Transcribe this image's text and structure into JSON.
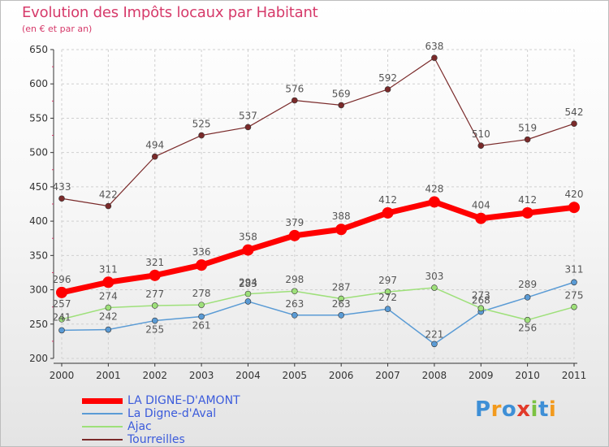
{
  "title": "Evolution des Impôts locaux par Habitant",
  "subtitle": "(en € et par an)",
  "logo": {
    "text": "Proxiti",
    "letters": [
      "P",
      "r",
      "o",
      "x",
      "i",
      "t",
      "i"
    ],
    "colors": [
      "#3e8fd6",
      "#f29a1d",
      "#3e8fd6",
      "#e23a2a",
      "#7cc242",
      "#3e8fd6",
      "#f29a1d"
    ]
  },
  "chart_data": {
    "type": "line",
    "title": "Evolution des Impôts locaux par Habitant",
    "subtitle": "(en € et par an)",
    "xlabel": "",
    "ylabel": "",
    "ylim": [
      200,
      650
    ],
    "yticks": [
      200,
      250,
      300,
      350,
      400,
      450,
      500,
      550,
      600,
      650
    ],
    "x": [
      "2000",
      "2001",
      "2002",
      "2003",
      "2004",
      "2005",
      "2006",
      "2007",
      "2008",
      "2009",
      "2010",
      "2011"
    ],
    "legend_position": "bottom-left",
    "series": [
      {
        "name": "LA DIGNE-D'AMONT",
        "color": "#ff0000",
        "width": 7,
        "marker": 7,
        "values": [
          296,
          311,
          321,
          336,
          358,
          379,
          388,
          412,
          428,
          404,
          412,
          420
        ]
      },
      {
        "name": "La Digne-d'Aval",
        "color": "#5a9bd5",
        "width": 1.5,
        "marker": 3.5,
        "values": [
          241,
          242,
          255,
          261,
          283,
          263,
          263,
          272,
          221,
          268,
          289,
          311
        ]
      },
      {
        "name": "Ajac",
        "color": "#9ee07a",
        "width": 1.5,
        "marker": 3.5,
        "values": [
          257,
          274,
          277,
          278,
          294,
          298,
          287,
          297,
          303,
          273,
          256,
          275
        ]
      },
      {
        "name": "Tourreilles",
        "color": "#7a2a2a",
        "width": 1.2,
        "marker": 3.5,
        "values": [
          433,
          422,
          494,
          525,
          537,
          576,
          569,
          592,
          638,
          510,
          519,
          542
        ]
      }
    ]
  }
}
